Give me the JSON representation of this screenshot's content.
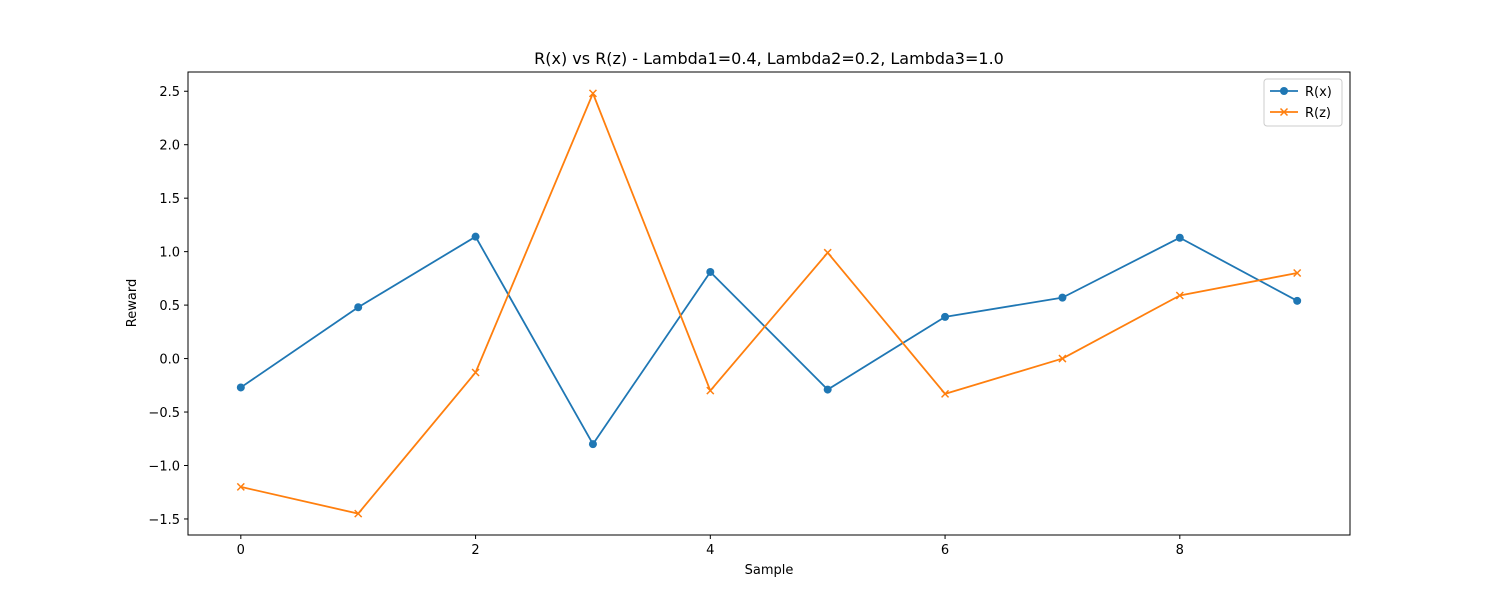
{
  "chart_data": {
    "type": "line",
    "title": "R(x) vs R(z) - Lambda1=0.4, Lambda2=0.2, Lambda3=1.0",
    "xlabel": "Sample",
    "ylabel": "Reward",
    "xlim": [
      -0.45,
      9.45
    ],
    "ylim": [
      -1.65,
      2.68
    ],
    "xticks": [
      0,
      2,
      4,
      6,
      8
    ],
    "xtick_labels": [
      "0",
      "2",
      "4",
      "6",
      "8"
    ],
    "yticks": [
      -1.5,
      -1.0,
      -0.5,
      0.0,
      0.5,
      1.0,
      1.5,
      2.0,
      2.5
    ],
    "ytick_labels": [
      "−1.5",
      "−1.0",
      "−0.5",
      "0.0",
      "0.5",
      "1.0",
      "1.5",
      "2.0",
      "2.5"
    ],
    "grid": false,
    "legend_position": "top-right",
    "x": [
      0,
      1,
      2,
      3,
      4,
      5,
      6,
      7,
      8,
      9
    ],
    "series": [
      {
        "name": "R(x)",
        "color": "#1f77b4",
        "marker": "circle",
        "values": [
          -0.27,
          0.48,
          1.14,
          -0.8,
          0.81,
          -0.29,
          0.39,
          0.57,
          1.13,
          0.54
        ]
      },
      {
        "name": "R(z)",
        "color": "#ff7f0e",
        "marker": "x",
        "values": [
          -1.2,
          -1.45,
          -0.13,
          2.48,
          -0.3,
          0.99,
          -0.33,
          0.0,
          0.59,
          0.8
        ]
      }
    ]
  }
}
